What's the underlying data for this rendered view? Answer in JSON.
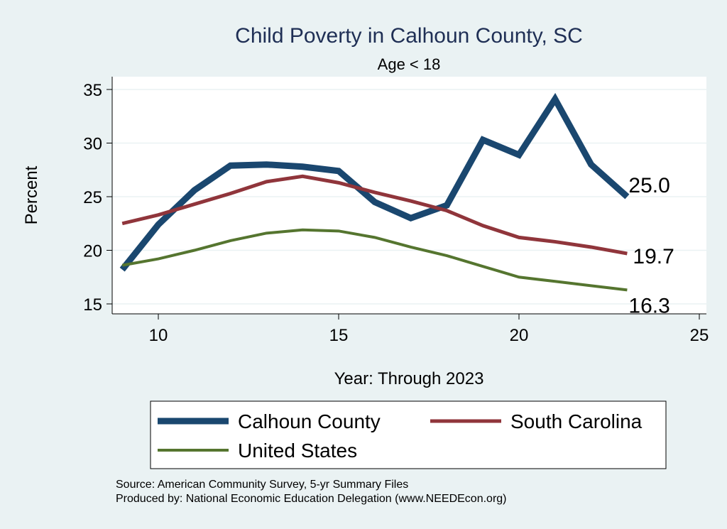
{
  "chart_data": {
    "type": "line",
    "title": "Child Poverty in Calhoun County, SC",
    "subtitle": "Age < 18",
    "xlabel": "Year: Through 2023",
    "ylabel": "Percent",
    "xlim": [
      8.7,
      25.3
    ],
    "ylim": [
      14,
      36
    ],
    "xticks": [
      10,
      15,
      20,
      25
    ],
    "yticks": [
      15,
      20,
      25,
      30,
      35
    ],
    "grid": true,
    "legend_position": "bottom",
    "x": [
      9,
      10,
      11,
      12,
      13,
      14,
      15,
      16,
      17,
      18,
      19,
      20,
      21,
      22,
      23
    ],
    "series": [
      {
        "name": "Calhoun County",
        "color": "#1a476f",
        "width": 9,
        "values": [
          18.2,
          22.4,
          25.6,
          27.9,
          28.0,
          27.8,
          27.4,
          24.5,
          23.0,
          24.2,
          30.3,
          28.9,
          34.1,
          28.0,
          25.0
        ],
        "end_label": "25.0"
      },
      {
        "name": "South Carolina",
        "color": "#90353b",
        "width": 5,
        "values": [
          22.5,
          23.3,
          24.3,
          25.3,
          26.4,
          26.9,
          26.3,
          25.4,
          24.6,
          23.7,
          22.3,
          21.2,
          20.8,
          20.3,
          19.7
        ],
        "end_label": "19.7"
      },
      {
        "name": "United States",
        "color": "#55752f",
        "width": 4,
        "values": [
          18.6,
          19.2,
          20.0,
          20.9,
          21.6,
          21.9,
          21.8,
          21.2,
          20.3,
          19.5,
          18.5,
          17.5,
          17.1,
          16.7,
          16.3
        ],
        "end_label": "16.3"
      }
    ],
    "notes": [
      "Source: American Community Survey, 5-yr Summary Files",
      "Produced by: National Economic Education Delegation (www.NEEDEcon.org)"
    ]
  }
}
